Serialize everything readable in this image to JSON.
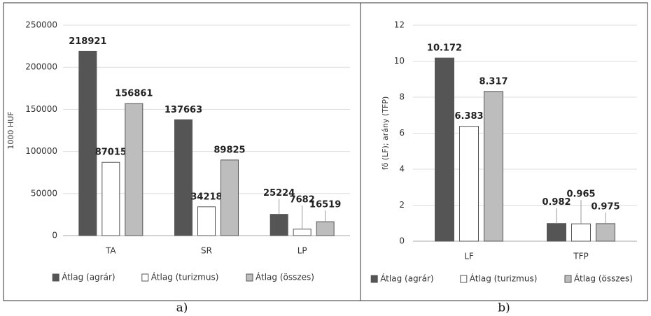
{
  "chart_data": [
    {
      "type": "bar",
      "caption": "a)",
      "y_label": "1000 HUF",
      "categories": [
        "TA",
        "SR",
        "LP"
      ],
      "series": [
        {
          "name": "Átlag (agrár)",
          "color": "#555555",
          "values": [
            218921,
            137663,
            25224
          ]
        },
        {
          "name": "Átlag (turizmus)",
          "color": "#ffffff",
          "values": [
            87015,
            34218,
            7682
          ]
        },
        {
          "name": "Átlag (összes)",
          "color": "#bdbdbd",
          "values": [
            156861,
            89825,
            16519
          ]
        }
      ],
      "ylim": [
        0,
        250000
      ],
      "yticks": [
        0,
        50000,
        100000,
        150000,
        200000,
        250000
      ],
      "grid": true,
      "legend": "bottom"
    },
    {
      "type": "bar",
      "caption": "b)",
      "y_label": "fő (LF); arány (TFP)",
      "categories": [
        "LF",
        "TFP"
      ],
      "series": [
        {
          "name": "Átlag (agrár)",
          "color": "#555555",
          "values": [
            10.172,
            0.982
          ]
        },
        {
          "name": "Átlag (turizmus)",
          "color": "#ffffff",
          "values": [
            6.383,
            0.965
          ]
        },
        {
          "name": "Átlag (összes)",
          "color": "#bdbdbd",
          "values": [
            8.317,
            0.975
          ]
        }
      ],
      "ylim": [
        0,
        12
      ],
      "yticks": [
        0,
        2,
        4,
        6,
        8,
        10,
        12
      ],
      "grid": true,
      "legend": "bottom"
    }
  ]
}
